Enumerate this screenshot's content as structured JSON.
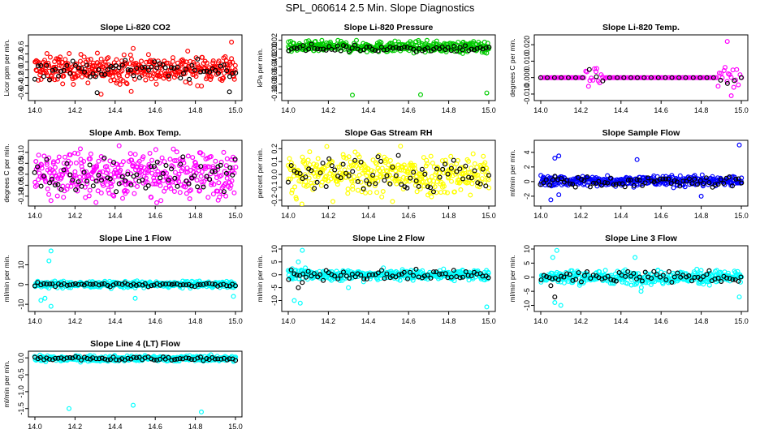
{
  "figure": {
    "title": "SPL_060614  2.5 Min. Slope Diagnostics"
  },
  "colors": {
    "red": "#ff0000",
    "green": "#00cc00",
    "magenta": "#ff00ff",
    "yellow": "#ffff00",
    "blue": "#0000ff",
    "cyan": "#00ffff",
    "black": "#000000"
  },
  "chart_data": [
    {
      "type": "scatter",
      "title": "Slope Li-820 CO2",
      "ylabel": "Licor ppm per min.",
      "xlim": [
        14.0,
        15.0
      ],
      "ylim": [
        -0.7,
        0.8
      ],
      "xticks": [
        "14.0",
        "14.2",
        "14.4",
        "14.6",
        "14.8",
        "15.0"
      ],
      "xtick_values": [
        14.0,
        14.2,
        14.4,
        14.6,
        14.8,
        15.0
      ],
      "yticks": [
        "-0.6",
        "-0.4",
        "-0.2",
        "0.0",
        "0.2",
        "0.4",
        "0.6"
      ],
      "ytick_values": [
        -0.6,
        -0.4,
        -0.2,
        0.0,
        0.2,
        0.4,
        0.6
      ],
      "series": [
        {
          "name": "all",
          "color": "#ff0000",
          "n": 380,
          "center": 0.02,
          "spread": 0.17,
          "outliers": [
            [
              14.98,
              0.7
            ],
            [
              14.33,
              -0.62
            ],
            [
              14.48,
              -0.55
            ],
            [
              14.49,
              0.54
            ]
          ]
        },
        {
          "name": "subset",
          "color": "#000000",
          "n": 70,
          "center": 0.0,
          "spread": 0.12,
          "outliers": [
            [
              14.31,
              -0.58
            ],
            [
              14.97,
              -0.56
            ]
          ]
        }
      ]
    },
    {
      "type": "scatter",
      "title": "Slope Li-820 Pressure",
      "ylabel": "kPa per min.",
      "xlim": [
        14.0,
        15.0
      ],
      "ylim": [
        -0.11,
        0.025
      ],
      "xticks": [
        "14.0",
        "14.2",
        "14.4",
        "14.6",
        "14.8",
        "15.0"
      ],
      "xtick_values": [
        14.0,
        14.2,
        14.4,
        14.6,
        14.8,
        15.0
      ],
      "yticks": [
        "-0.10",
        "-0.08",
        "-0.06",
        "-0.04",
        "-0.02",
        "0.00",
        "0.02"
      ],
      "ytick_values": [
        -0.1,
        -0.08,
        -0.06,
        -0.04,
        -0.02,
        0.0,
        0.02
      ],
      "series": [
        {
          "name": "all",
          "color": "#00cc00",
          "n": 380,
          "center": 0.005,
          "spread": 0.006,
          "outliers": [
            [
              14.32,
              -0.105
            ],
            [
              14.66,
              -0.104
            ],
            [
              14.99,
              -0.1
            ],
            [
              14.87,
              -0.01
            ],
            [
              14.21,
              0.016
            ]
          ]
        },
        {
          "name": "subset",
          "color": "#000000",
          "n": 70,
          "center": 0.002,
          "spread": 0.004,
          "outliers": []
        }
      ]
    },
    {
      "type": "scatter",
      "title": "Slope Li-820 Temp.",
      "ylabel": "degrees C per min.",
      "xlim": [
        14.0,
        15.0
      ],
      "ylim": [
        -0.012,
        0.024
      ],
      "xticks": [
        "14.0",
        "14.2",
        "14.4",
        "14.6",
        "14.8",
        "15.0"
      ],
      "xtick_values": [
        14.0,
        14.2,
        14.4,
        14.6,
        14.8,
        15.0
      ],
      "yticks": [
        "-0.010",
        "0.000",
        "0.010",
        "0.020"
      ],
      "ytick_values": [
        -0.01,
        0.0,
        0.01,
        0.02
      ],
      "series": [
        {
          "name": "all",
          "color": "#ff00ff",
          "n": 140,
          "center": 0.0,
          "spread": 0.004,
          "bursts": [
            [
              14.22,
              14.32
            ],
            [
              14.88,
              15.0
            ]
          ],
          "outliers": [
            [
              14.93,
              0.022
            ],
            [
              14.95,
              -0.011
            ]
          ]
        },
        {
          "name": "subset",
          "color": "#000000",
          "n": 30,
          "center": 0.0,
          "spread": 0.003,
          "bursts": [
            [
              14.22,
              14.32
            ],
            [
              14.88,
              15.0
            ]
          ],
          "outliers": []
        }
      ]
    },
    {
      "type": "scatter",
      "title": "Slope Amb. Box Temp.",
      "ylabel": "degrees C per min.",
      "xlim": [
        14.0,
        15.0
      ],
      "ylim": [
        -0.13,
        0.14
      ],
      "xticks": [
        "14.0",
        "14.2",
        "14.4",
        "14.6",
        "14.8",
        "15.0"
      ],
      "xtick_values": [
        14.0,
        14.2,
        14.4,
        14.6,
        14.8,
        15.0
      ],
      "yticks": [
        "-0.10",
        "-0.05",
        "0.00",
        "0.05",
        "0.10"
      ],
      "ytick_values": [
        -0.1,
        -0.05,
        0.0,
        0.05,
        0.1
      ],
      "series": [
        {
          "name": "all",
          "color": "#ff00ff",
          "n": 380,
          "center": 0.0,
          "spread": 0.05,
          "outliers": [
            [
              14.08,
              -0.12
            ],
            [
              14.42,
              0.13
            ]
          ]
        },
        {
          "name": "subset",
          "color": "#000000",
          "n": 70,
          "center": 0.0,
          "spread": 0.04,
          "outliers": []
        }
      ]
    },
    {
      "type": "scatter",
      "title": "Slope Gas Stream RH",
      "ylabel": "percent per min.",
      "xlim": [
        14.0,
        15.0
      ],
      "ylim": [
        -0.22,
        0.24
      ],
      "xticks": [
        "14.0",
        "14.2",
        "14.4",
        "14.6",
        "14.8",
        "15.0"
      ],
      "xtick_values": [
        14.0,
        14.2,
        14.4,
        14.6,
        14.8,
        15.0
      ],
      "yticks": [
        "-0.2",
        "-0.1",
        "0.0",
        "0.1",
        "0.2"
      ],
      "ytick_values": [
        -0.2,
        -0.1,
        0.0,
        0.1,
        0.2
      ],
      "series": [
        {
          "name": "all",
          "color": "#ffff00",
          "n": 380,
          "center": 0.0,
          "spread": 0.08,
          "outliers": [
            [
              14.52,
              -0.21
            ],
            [
              14.56,
              0.22
            ]
          ]
        },
        {
          "name": "subset",
          "color": "#000000",
          "n": 70,
          "center": 0.0,
          "spread": 0.07,
          "outliers": []
        }
      ]
    },
    {
      "type": "scatter",
      "title": "Slope Sample Flow",
      "ylabel": "ml/min per min.",
      "xlim": [
        14.0,
        15.0
      ],
      "ylim": [
        -2.9,
        5.2
      ],
      "xticks": [
        "14.0",
        "14.2",
        "14.4",
        "14.6",
        "14.8",
        "15.0"
      ],
      "xtick_values": [
        14.0,
        14.2,
        14.4,
        14.6,
        14.8,
        15.0
      ],
      "yticks": [
        "-2",
        "0",
        "2",
        "4"
      ],
      "ytick_values": [
        -2,
        0,
        2,
        4
      ],
      "series": [
        {
          "name": "all",
          "color": "#0000ff",
          "n": 380,
          "center": 0.1,
          "spread": 0.35,
          "outliers": [
            [
              14.99,
              5.0
            ],
            [
              14.07,
              3.2
            ],
            [
              14.09,
              3.5
            ],
            [
              14.48,
              3.0
            ],
            [
              14.05,
              -2.5
            ],
            [
              14.8,
              -2.0
            ],
            [
              14.09,
              -1.8
            ]
          ]
        },
        {
          "name": "subset",
          "color": "#000000",
          "n": 70,
          "center": 0.0,
          "spread": 0.4,
          "outliers": []
        }
      ]
    },
    {
      "type": "scatter",
      "title": "Slope Line 1 Flow",
      "ylabel": "ml/min per min.",
      "xlim": [
        14.0,
        15.0
      ],
      "ylim": [
        -12,
        18
      ],
      "xticks": [
        "14.0",
        "14.2",
        "14.4",
        "14.6",
        "14.8",
        "15.0"
      ],
      "xtick_values": [
        14.0,
        14.2,
        14.4,
        14.6,
        14.8,
        15.0
      ],
      "yticks": [
        "-10",
        "0",
        "10"
      ],
      "ytick_values": [
        -10,
        0,
        10
      ],
      "series": [
        {
          "name": "all",
          "color": "#00ffff",
          "n": 380,
          "center": 0.0,
          "spread": 0.8,
          "outliers": [
            [
              14.08,
              17
            ],
            [
              14.07,
              12
            ],
            [
              14.08,
              -11
            ],
            [
              14.03,
              -8
            ],
            [
              14.05,
              -7
            ],
            [
              14.5,
              -7
            ],
            [
              14.99,
              -6
            ]
          ]
        },
        {
          "name": "subset",
          "color": "#000000",
          "n": 70,
          "center": 0.0,
          "spread": 0.5,
          "outliers": []
        }
      ]
    },
    {
      "type": "scatter",
      "title": "Slope Line 2 Flow",
      "ylabel": "ml/min per min.",
      "xlim": [
        14.0,
        15.0
      ],
      "ylim": [
        -13,
        10
      ],
      "xticks": [
        "14.0",
        "14.2",
        "14.4",
        "14.6",
        "14.8",
        "15.0"
      ],
      "xtick_values": [
        14.0,
        14.2,
        14.4,
        14.6,
        14.8,
        15.0
      ],
      "yticks": [
        "-10",
        "-5",
        "0",
        "5",
        "10"
      ],
      "ytick_values": [
        -10,
        -5,
        0,
        5,
        10
      ],
      "series": [
        {
          "name": "all",
          "color": "#00ffff",
          "n": 380,
          "center": 0.0,
          "spread": 1.0,
          "outliers": [
            [
              14.07,
              9.5
            ],
            [
              14.03,
              -10
            ],
            [
              14.99,
              -12.5
            ],
            [
              14.06,
              -11
            ],
            [
              14.05,
              5
            ],
            [
              14.3,
              -5
            ]
          ]
        },
        {
          "name": "subset",
          "color": "#000000",
          "n": 70,
          "center": 0.0,
          "spread": 1.0,
          "outliers": [
            [
              14.05,
              -5
            ],
            [
              14.07,
              -3
            ]
          ]
        }
      ]
    },
    {
      "type": "scatter",
      "title": "Slope Line 3 Flow",
      "ylabel": "ml/min per min.",
      "xlim": [
        14.0,
        15.0
      ],
      "ylim": [
        -11,
        10
      ],
      "xticks": [
        "14.0",
        "14.2",
        "14.4",
        "14.6",
        "14.8",
        "15.0"
      ],
      "xtick_values": [
        14.0,
        14.2,
        14.4,
        14.6,
        14.8,
        15.0
      ],
      "yticks": [
        "-10",
        "-5",
        "0",
        "5",
        "10"
      ],
      "ytick_values": [
        -10,
        -5,
        0,
        5,
        10
      ],
      "series": [
        {
          "name": "all",
          "color": "#00ffff",
          "n": 380,
          "center": 0.0,
          "spread": 1.2,
          "outliers": [
            [
              14.08,
              9.5
            ],
            [
              14.06,
              7
            ],
            [
              14.07,
              -9
            ],
            [
              14.1,
              -10
            ],
            [
              14.47,
              7
            ],
            [
              14.99,
              -7
            ],
            [
              14.5,
              -5
            ]
          ]
        },
        {
          "name": "subset",
          "color": "#000000",
          "n": 70,
          "center": 0.0,
          "spread": 1.0,
          "outliers": [
            [
              14.07,
              -7
            ],
            [
              14.05,
              -3
            ]
          ]
        }
      ]
    },
    {
      "type": "scatter",
      "title": "Slope Line 4 (LT) Flow",
      "ylabel": "ml/min per min.",
      "xlim": [
        14.0,
        15.0
      ],
      "ylim": [
        -1.65,
        0.1
      ],
      "xticks": [
        "14.0",
        "14.2",
        "14.4",
        "14.6",
        "14.8",
        "15.0"
      ],
      "xtick_values": [
        14.0,
        14.2,
        14.4,
        14.6,
        14.8,
        15.0
      ],
      "yticks": [
        "-1.5",
        "-1.0",
        "-0.5",
        "0.0"
      ],
      "ytick_values": [
        -1.5,
        -1.0,
        -0.5,
        0.0
      ],
      "series": [
        {
          "name": "all",
          "color": "#00ffff",
          "n": 380,
          "center": -0.02,
          "spread": 0.04,
          "outliers": [
            [
              14.17,
              -1.5
            ],
            [
              14.49,
              -1.4
            ],
            [
              14.83,
              -1.6
            ]
          ]
        },
        {
          "name": "subset",
          "color": "#000000",
          "n": 70,
          "center": -0.02,
          "spread": 0.03,
          "outliers": []
        }
      ]
    }
  ]
}
